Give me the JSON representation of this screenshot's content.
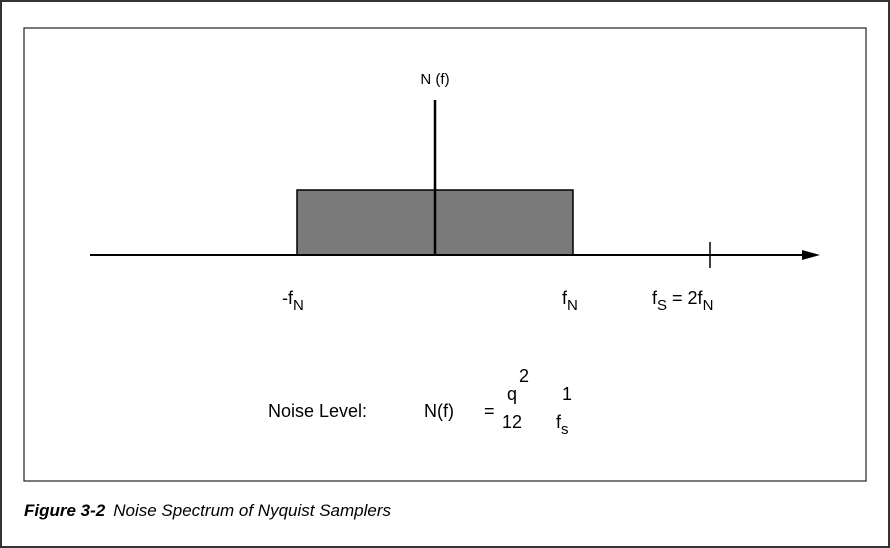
{
  "axis_label": "N (f)",
  "x_labels": [
    {
      "main": "-f",
      "sub": "N"
    },
    {
      "main": "f",
      "sub": "N"
    },
    {
      "main": "f",
      "sub": "S",
      "rest": " = 2f",
      "sub2": "N"
    }
  ],
  "formula": {
    "label": "Noise Level:",
    "lhs": "N(f)",
    "equals": "=",
    "numerator": "q",
    "exponent": "2",
    "denominator": "12",
    "numerator2": "1",
    "denominator2": "f",
    "denominator2_sub": "s"
  },
  "caption": {
    "number": "Figure 3-2",
    "text": "Noise Spectrum of Nyquist Samplers"
  }
}
